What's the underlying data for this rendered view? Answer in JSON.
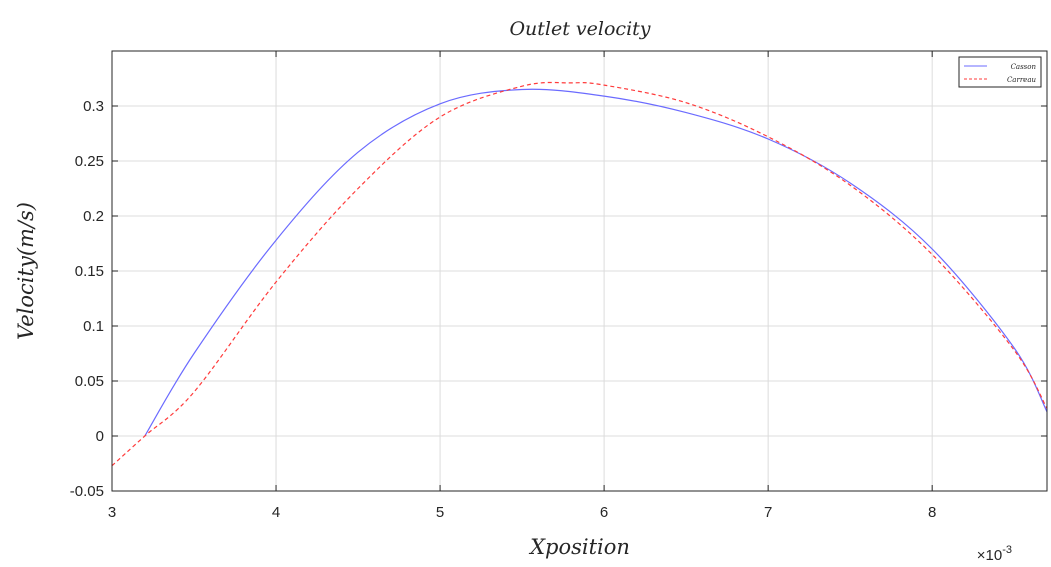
{
  "chart_data": {
    "type": "line",
    "title": "Outlet velocity",
    "xlabel": "Xposition",
    "ylabel": "Velocity(m/s)",
    "x_exponent_label": "×10",
    "x_exponent_power": "-3",
    "xlim": [
      3.0,
      8.7
    ],
    "ylim": [
      -0.05,
      0.35
    ],
    "x_ticks": [
      3,
      4,
      5,
      6,
      7,
      8
    ],
    "x_tick_labels": [
      "3",
      "4",
      "5",
      "6",
      "7",
      "8"
    ],
    "y_ticks": [
      -0.05,
      0,
      0.05,
      0.1,
      0.15,
      0.2,
      0.25,
      0.3
    ],
    "y_tick_labels": [
      "-0.05",
      "0",
      "0.05",
      "0.1",
      "0.15",
      "0.2",
      "0.25",
      "0.3"
    ],
    "grid": true,
    "legend_position": "top-right",
    "series": [
      {
        "name": "Casson",
        "color": "#6b6bff",
        "style": "solid",
        "x": [
          3.2,
          3.5,
          4.0,
          4.5,
          5.0,
          5.5,
          6.0,
          6.5,
          7.0,
          7.5,
          8.0,
          8.5,
          8.7
        ],
        "y": [
          0.0,
          0.075,
          0.178,
          0.258,
          0.302,
          0.315,
          0.309,
          0.294,
          0.27,
          0.23,
          0.17,
          0.08,
          0.022
        ]
      },
      {
        "name": "Carreau",
        "color": "#ff3b3b",
        "style": "dashed",
        "x": [
          3.0,
          3.2,
          3.5,
          4.0,
          4.5,
          5.0,
          5.5,
          5.8,
          6.0,
          6.5,
          7.0,
          7.5,
          8.0,
          8.5,
          8.7
        ],
        "y": [
          -0.027,
          0.0,
          0.04,
          0.14,
          0.225,
          0.29,
          0.318,
          0.321,
          0.319,
          0.303,
          0.272,
          0.228,
          0.165,
          0.078,
          0.025
        ]
      }
    ]
  }
}
